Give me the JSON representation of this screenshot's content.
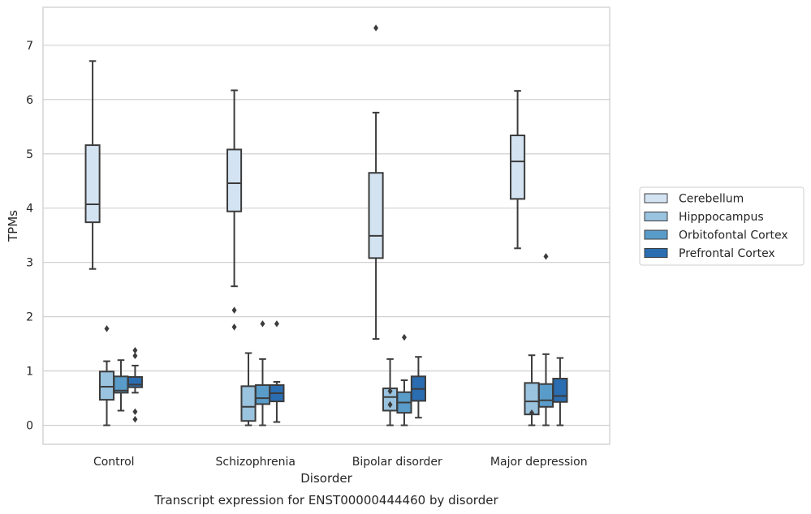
{
  "chart_data": {
    "type": "boxplot",
    "title": "Transcript expression for ENST00000444460 by disorder",
    "xlabel": "Disorder",
    "ylabel": "TPMs",
    "ylim": [
      -0.35,
      7.7
    ],
    "yticks": [
      0,
      1,
      2,
      3,
      4,
      5,
      6,
      7
    ],
    "grid": true,
    "legend_position": "right",
    "categories": [
      "Control",
      "Schizophrenia",
      "Bipolar disorder",
      "Major depression"
    ],
    "series": [
      {
        "name": "Cerebellum",
        "color": "#d4e3f2",
        "boxes": [
          {
            "whislo": 2.88,
            "q1": 3.74,
            "med": 4.07,
            "q3": 5.16,
            "whishi": 6.71,
            "fliers": []
          },
          {
            "whislo": 2.56,
            "q1": 3.94,
            "med": 4.46,
            "q3": 5.08,
            "whishi": 6.17,
            "fliers": [
              2.12,
              1.81
            ]
          },
          {
            "whislo": 1.59,
            "q1": 3.08,
            "med": 3.49,
            "q3": 4.65,
            "whishi": 5.76,
            "fliers": [
              7.32
            ]
          },
          {
            "whislo": 3.26,
            "q1": 4.17,
            "med": 4.86,
            "q3": 5.34,
            "whishi": 6.16,
            "fliers": []
          }
        ]
      },
      {
        "name": "Hipppocampus",
        "color": "#99c3df",
        "boxes": [
          {
            "whislo": 0.0,
            "q1": 0.47,
            "med": 0.71,
            "q3": 0.99,
            "whishi": 1.18,
            "fliers": [
              1.78
            ]
          },
          {
            "whislo": 0.0,
            "q1": 0.08,
            "med": 0.34,
            "q3": 0.72,
            "whishi": 1.33,
            "fliers": []
          },
          {
            "whislo": 0.0,
            "q1": 0.27,
            "med": 0.52,
            "q3": 0.68,
            "whishi": 1.22,
            "fliers": [
              0.63,
              0.38
            ]
          },
          {
            "whislo": 0.0,
            "q1": 0.2,
            "med": 0.44,
            "q3": 0.78,
            "whishi": 1.29,
            "fliers": [
              0.23
            ]
          }
        ]
      },
      {
        "name": "Orbitofontal Cortex",
        "color": "#5a9cc9",
        "boxes": [
          {
            "whislo": 0.27,
            "q1": 0.6,
            "med": 0.64,
            "q3": 0.9,
            "whishi": 1.2,
            "fliers": []
          },
          {
            "whislo": 0.0,
            "q1": 0.39,
            "med": 0.5,
            "q3": 0.74,
            "whishi": 1.22,
            "fliers": [
              1.87
            ]
          },
          {
            "whislo": 0.0,
            "q1": 0.23,
            "med": 0.42,
            "q3": 0.61,
            "whishi": 0.83,
            "fliers": [
              1.62
            ]
          },
          {
            "whislo": 0.0,
            "q1": 0.34,
            "med": 0.46,
            "q3": 0.76,
            "whishi": 1.31,
            "fliers": [
              3.11
            ]
          }
        ]
      },
      {
        "name": "Prefrontal Cortex",
        "color": "#2a6db1",
        "boxes": [
          {
            "whislo": 0.6,
            "q1": 0.7,
            "med": 0.75,
            "q3": 0.89,
            "whishi": 1.1,
            "fliers": [
              1.38,
              1.28,
              0.25,
              0.11
            ]
          },
          {
            "whislo": 0.06,
            "q1": 0.44,
            "med": 0.59,
            "q3": 0.74,
            "whishi": 0.8,
            "fliers": [
              1.87
            ]
          },
          {
            "whislo": 0.14,
            "q1": 0.45,
            "med": 0.67,
            "q3": 0.9,
            "whishi": 1.26,
            "fliers": []
          },
          {
            "whislo": 0.0,
            "q1": 0.43,
            "med": 0.54,
            "q3": 0.86,
            "whishi": 1.24,
            "fliers": []
          }
        ]
      }
    ]
  }
}
